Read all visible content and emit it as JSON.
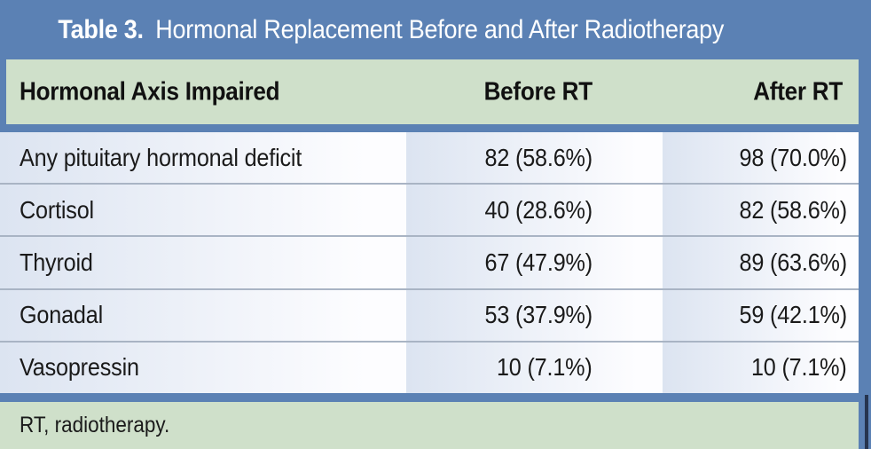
{
  "table": {
    "number_label": "Table 3.",
    "title": "Hormonal Replacement Before and After Radiotherapy",
    "columns": [
      "Hormonal Axis Impaired",
      "Before RT",
      "After RT"
    ],
    "rows": [
      {
        "label": "Any pituitary hormonal deficit",
        "before": "82 (58.6%)",
        "after": "98 (70.0%)"
      },
      {
        "label": "Cortisol",
        "before": "40 (28.6%)",
        "after": "82 (58.6%)"
      },
      {
        "label": "Thyroid",
        "before": "67 (47.9%)",
        "after": "89 (63.6%)"
      },
      {
        "label": "Gonadal",
        "before": "53 (37.9%)",
        "after": "59 (42.1%)"
      },
      {
        "label": "Vasopressin",
        "before": "10 (7.1%)",
        "after": "10 (7.1%)"
      }
    ],
    "footnote": "RT, radiotherapy.",
    "colors": {
      "title_bar_blue": "#5b81b4",
      "header_green": "#cfe0ca",
      "cell_gradient_start": "#dce4f1",
      "cell_gradient_end": "#fdfdff",
      "row_separator": "#a9b4c4",
      "title_text": "#ffffff",
      "body_text": "#1a1a1a",
      "dark_page_rule": "#26344e"
    }
  },
  "chart_data": {
    "type": "table",
    "title": "Table 3. Hormonal Replacement Before and After Radiotherapy",
    "columns": [
      "Hormonal Axis Impaired",
      "Before RT",
      "After RT"
    ],
    "rows": [
      [
        "Any pituitary hormonal deficit",
        "82 (58.6%)",
        "98 (70.0%)"
      ],
      [
        "Cortisol",
        "40 (28.6%)",
        "82 (58.6%)"
      ],
      [
        "Thyroid",
        "67 (47.9%)",
        "89 (63.6%)"
      ],
      [
        "Gonadal",
        "53 (37.9%)",
        "59 (42.1%)"
      ],
      [
        "Vasopressin",
        "10 (7.1%)",
        "10 (7.1%)"
      ]
    ],
    "footnote": "RT, radiotherapy."
  }
}
